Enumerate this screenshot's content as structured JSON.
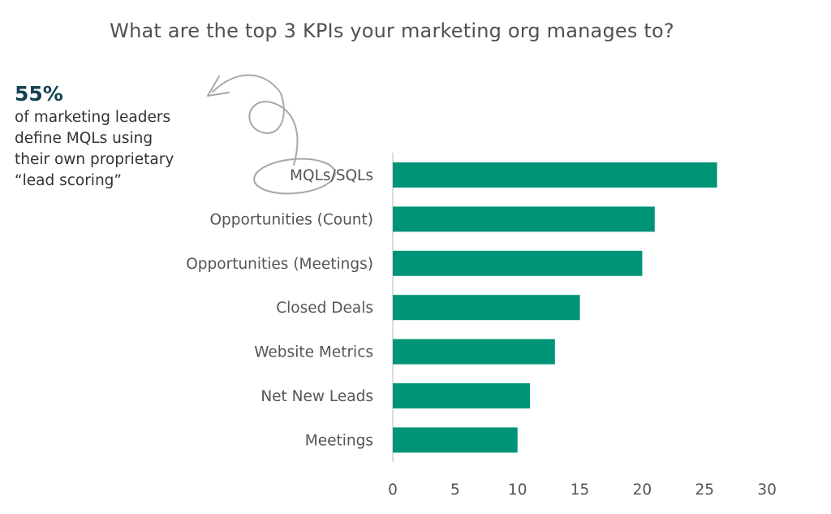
{
  "title": "What are the top 3 KPIs your marketing org manages to?",
  "callout": {
    "percent": "55%",
    "lines": [
      "of marketing leaders",
      "define MQLs using",
      "their own proprietary",
      "“lead scoring”"
    ]
  },
  "colors": {
    "bar": "#009477",
    "axis": "#d0d0d0",
    "annotation": "#a8a8a8",
    "stat": "#12424f"
  },
  "chart_data": {
    "type": "bar",
    "orientation": "horizontal",
    "categories": [
      "MQLs/SQLs",
      "Opportunities (Count)",
      "Opportunities (Meetings)",
      "Closed Deals",
      "Website Metrics",
      "Net New Leads",
      "Meetings"
    ],
    "values": [
      26,
      21,
      20,
      15,
      13,
      11,
      10
    ],
    "xlim": [
      0,
      30
    ],
    "xticks": [
      0,
      5,
      10,
      15,
      20,
      25,
      30
    ],
    "title": "What are the top 3 KPIs your marketing org manages to?",
    "xlabel": "",
    "ylabel": "",
    "grid": false,
    "legend": "none"
  }
}
